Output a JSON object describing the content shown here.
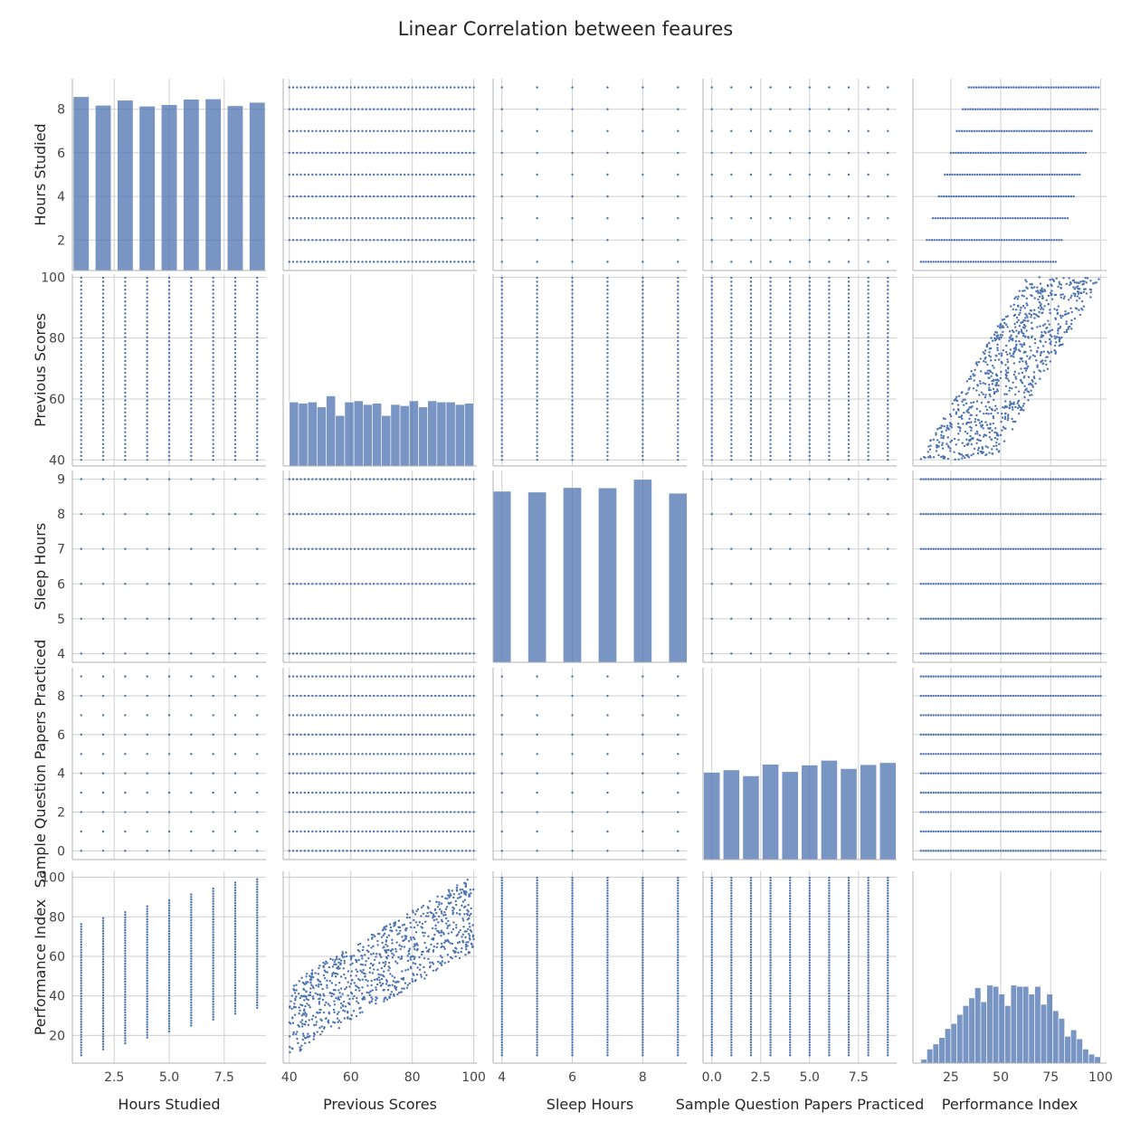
{
  "chart_data": {
    "type": "scatter",
    "title": "Linear Correlation between feaures",
    "kind": "pairplot",
    "grid": true,
    "colors": {
      "marker": "#4c72b0",
      "bar": "#4c72b0",
      "grid": "#cfcfcf",
      "axis": "#b0b0b0"
    },
    "variables": [
      {
        "name": "Hours Studied",
        "label": "Hours Studied",
        "range": [
          0.6,
          9.4
        ],
        "ticks": [
          2,
          4,
          6,
          8
        ],
        "xticks": [
          2.5,
          5.0,
          7.5
        ],
        "xtick_labels": [
          "2.5",
          "5.0",
          "7.5"
        ],
        "values": [
          1,
          2,
          3,
          4,
          5,
          6,
          7,
          8,
          9
        ]
      },
      {
        "name": "Previous Scores",
        "label": "Previous Scores",
        "range": [
          38,
          101
        ],
        "ticks": [
          40,
          60,
          80,
          100
        ],
        "xticks": [
          40,
          60,
          80,
          100
        ],
        "xtick_labels": [
          "40",
          "60",
          "80",
          "100"
        ],
        "values": [
          40,
          100
        ]
      },
      {
        "name": "Sleep Hours",
        "label": "Sleep Hours",
        "range": [
          3.75,
          9.25
        ],
        "ticks": [
          4,
          5,
          6,
          7,
          8,
          9
        ],
        "xticks": [
          4,
          6,
          8
        ],
        "xtick_labels": [
          "4",
          "6",
          "8"
        ],
        "values": [
          4,
          5,
          6,
          7,
          8,
          9
        ]
      },
      {
        "name": "Sample Question Papers Practiced",
        "label": "Sample Question Papers Practiced",
        "range": [
          -0.45,
          9.45
        ],
        "ticks": [
          0,
          2,
          4,
          6,
          8
        ],
        "xticks": [
          0.0,
          2.5,
          5.0,
          7.5
        ],
        "xtick_labels": [
          "0.0",
          "2.5",
          "5.0",
          "7.5"
        ],
        "values": [
          0,
          1,
          2,
          3,
          4,
          5,
          6,
          7,
          8,
          9
        ]
      },
      {
        "name": "Performance Index",
        "label": "Performance Index",
        "range": [
          6,
          103
        ],
        "ticks": [
          20,
          40,
          60,
          80,
          100
        ],
        "xticks": [
          25,
          50,
          75,
          100
        ],
        "xtick_labels": [
          "25",
          "50",
          "75",
          "100"
        ],
        "values": [
          10,
          100
        ]
      }
    ],
    "histograms": [
      {
        "variable": "Hours Studied",
        "bins": [
          1,
          2,
          3,
          4,
          5,
          6,
          7,
          8,
          9
        ],
        "counts": [
          1133,
          1077,
          1110,
          1071,
          1081,
          1116,
          1118,
          1074,
          1096
        ],
        "max": 1250
      },
      {
        "variable": "Previous Scores",
        "bin_edges": [
          40,
          43,
          46,
          49,
          52,
          55,
          58,
          61,
          64,
          67,
          70,
          73,
          76,
          79,
          82,
          85,
          88,
          91,
          94,
          97,
          100
        ],
        "counts": [
          520,
          510,
          520,
          480,
          570,
          410,
          520,
          530,
          500,
          510,
          410,
          500,
          490,
          530,
          480,
          530,
          520,
          520,
          500,
          510
        ],
        "max": 1560
      },
      {
        "variable": "Sleep Hours",
        "bins": [
          4,
          5,
          6,
          7,
          8,
          9
        ],
        "counts": [
          1641,
          1633,
          1676,
          1673,
          1755,
          1622
        ],
        "max": 1840
      },
      {
        "variable": "Sample Question Papers Practiced",
        "bins": [
          0,
          1,
          2,
          3,
          4,
          5,
          6,
          7,
          8,
          9
        ],
        "counts": [
          951,
          977,
          912,
          1038,
          958,
          1030,
          1081,
          991,
          1034,
          1056
        ],
        "max": 2090
      },
      {
        "variable": "Performance Index",
        "bin_edges": [
          10,
          13,
          16,
          19,
          22,
          25,
          28,
          31,
          34,
          37,
          40,
          43,
          46,
          49,
          52,
          55,
          58,
          61,
          64,
          67,
          70,
          73,
          76,
          79,
          82,
          85,
          88,
          91,
          94,
          97,
          100
        ],
        "counts": [
          30,
          110,
          150,
          200,
          270,
          310,
          380,
          450,
          510,
          590,
          480,
          610,
          600,
          540,
          450,
          610,
          600,
          600,
          540,
          600,
          460,
          540,
          410,
          350,
          210,
          260,
          190,
          110,
          70,
          50
        ],
        "max": 1500
      }
    ]
  }
}
